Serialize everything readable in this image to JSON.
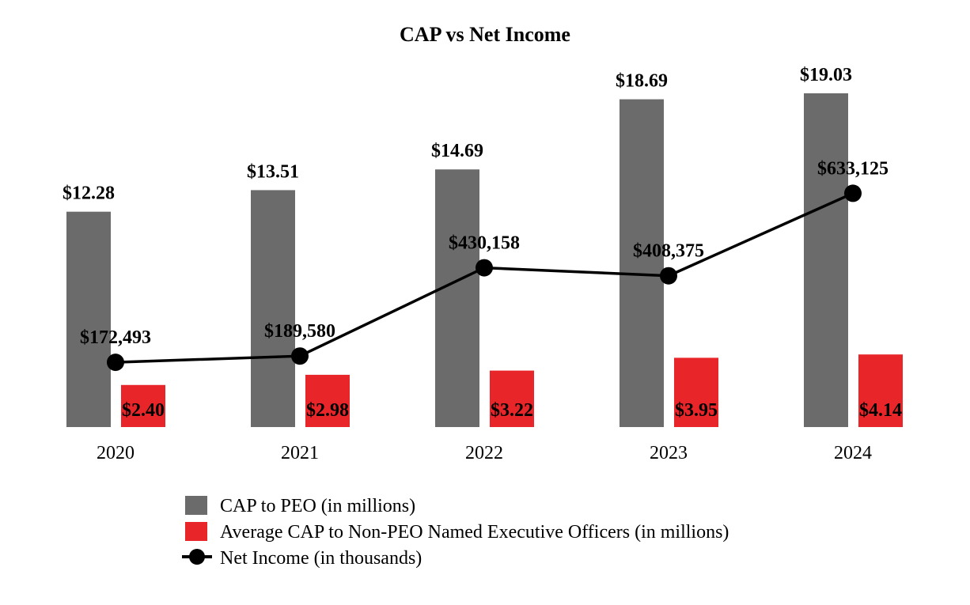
{
  "chart_data": {
    "type": "bar",
    "title": "CAP vs Net Income",
    "categories": [
      "2020",
      "2021",
      "2022",
      "2023",
      "2024"
    ],
    "series": [
      {
        "name": "CAP to PEO (in millions)",
        "kind": "bar",
        "color": "#6b6b6b",
        "values": [
          12.28,
          13.51,
          14.69,
          18.69,
          19.03
        ],
        "labels": [
          "$12.28",
          "$13.51",
          "$14.69",
          "$18.69",
          "$19.03"
        ]
      },
      {
        "name": "Average CAP to Non-PEO Named Executive Officers (in millions)",
        "kind": "bar",
        "color": "#e8262a",
        "values": [
          2.4,
          2.98,
          3.22,
          3.95,
          4.14
        ],
        "labels": [
          "$2.40",
          "$2.98",
          "$3.22",
          "$3.95",
          "$4.14"
        ]
      },
      {
        "name": "Net Income (in thousands)",
        "kind": "line",
        "color": "#000000",
        "values": [
          172493,
          189580,
          430158,
          408375,
          633125
        ],
        "labels": [
          "$172,493",
          "$189,580",
          "$430,158",
          "$408,375",
          "$633,125"
        ]
      }
    ],
    "bar_axis_range": [
      0,
      19.03
    ],
    "line_axis_range": [
      -4000,
      1160000
    ],
    "xlabel": "",
    "ylabel": "",
    "grid": false,
    "legend_position": "bottom"
  }
}
